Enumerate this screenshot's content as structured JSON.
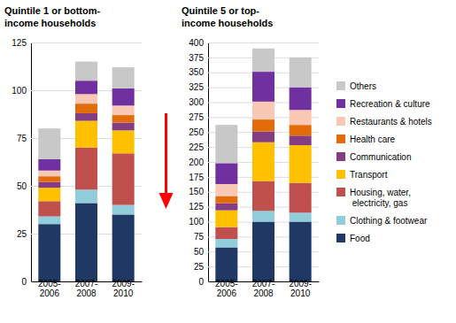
{
  "chart_data": [
    {
      "type": "bar",
      "stacked": true,
      "grid": true,
      "legend": "right",
      "title": "Quintile 1 or bottom-\nincome households",
      "categories": [
        "2005-\n2006",
        "2007-\n2008",
        "2009-\n2010"
      ],
      "ylim": [
        0,
        125
      ],
      "yticks": [
        0,
        25,
        50,
        75,
        100,
        125
      ],
      "series": [
        {
          "name": "Food",
          "color": "#1f3864",
          "values": [
            30,
            41,
            35
          ]
        },
        {
          "name": "Clothing & footwear",
          "color": "#92cddc",
          "values": [
            4,
            7,
            5
          ]
        },
        {
          "name": "Housing, water,\n  electricity, gas",
          "color": "#c0504d",
          "values": [
            8,
            22,
            27
          ]
        },
        {
          "name": "Transport",
          "color": "#ffc000",
          "values": [
            7,
            14,
            12
          ]
        },
        {
          "name": "Communication",
          "color": "#843c82",
          "values": [
            3,
            4,
            4
          ]
        },
        {
          "name": "Health care",
          "color": "#e36c0a",
          "values": [
            3,
            5,
            4
          ]
        },
        {
          "name": "Restaurants & hotels",
          "color": "#f9c8b4",
          "values": [
            3,
            5,
            5
          ]
        },
        {
          "name": "Recreation & culture",
          "color": "#7030a0",
          "values": [
            6,
            7,
            9
          ]
        },
        {
          "name": "Others",
          "color": "#c8c8c8",
          "values": [
            16,
            10,
            11
          ]
        }
      ]
    },
    {
      "type": "bar",
      "stacked": true,
      "grid": true,
      "title": "Quintile 5 or top-\nincome households",
      "categories": [
        "2005-\n2006",
        "2007-\n2008",
        "2009-\n2010"
      ],
      "ylim": [
        0,
        400
      ],
      "yticks": [
        0,
        25,
        50,
        75,
        100,
        125,
        150,
        175,
        200,
        225,
        250,
        275,
        300,
        325,
        350,
        375,
        400
      ],
      "series": [
        {
          "name": "Food",
          "color": "#1f3864",
          "values": [
            57,
            100,
            100
          ]
        },
        {
          "name": "Clothing & footwear",
          "color": "#92cddc",
          "values": [
            14,
            18,
            15
          ]
        },
        {
          "name": "Housing, water,\n  electricity, gas",
          "color": "#c0504d",
          "values": [
            20,
            50,
            50
          ]
        },
        {
          "name": "Transport",
          "color": "#ffc000",
          "values": [
            28,
            65,
            63
          ]
        },
        {
          "name": "Communication",
          "color": "#843c82",
          "values": [
            12,
            18,
            16
          ]
        },
        {
          "name": "Health care",
          "color": "#e36c0a",
          "values": [
            12,
            20,
            18
          ]
        },
        {
          "name": "Restaurants & hotels",
          "color": "#f9c8b4",
          "values": [
            20,
            30,
            25
          ]
        },
        {
          "name": "Recreation & culture",
          "color": "#7030a0",
          "values": [
            35,
            50,
            38
          ]
        },
        {
          "name": "Others",
          "color": "#c8c8c8",
          "values": [
            64,
            39,
            50
          ]
        }
      ]
    }
  ]
}
